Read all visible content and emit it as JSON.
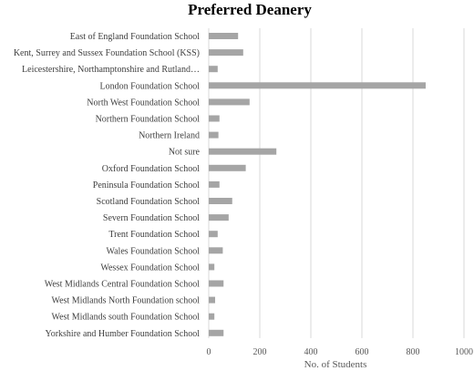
{
  "chart_data": {
    "type": "bar",
    "orientation": "horizontal",
    "title": "Preferred Deanery",
    "xlabel": "No. of Students",
    "ylabel": "",
    "xlim": [
      0,
      1000
    ],
    "x_ticks": [
      0,
      200,
      400,
      600,
      800,
      1000
    ],
    "grid": true,
    "bar_color": "#a5a5a5",
    "grid_color": "#d9d9d9",
    "categories": [
      "East of England Foundation School",
      "Kent, Surrey and Sussex Foundation School (KSS)",
      "Leicestershire, Northamptonshire and Rutland…",
      "London Foundation School",
      "North West Foundation School",
      "Northern Foundation School",
      "Northern Ireland",
      "Not sure",
      "Oxford Foundation School",
      "Peninsula Foundation School",
      "Scotland Foundation School",
      "Severn Foundation School",
      "Trent Foundation School",
      "Wales Foundation School",
      "Wessex Foundation School",
      "West Midlands Central Foundation School",
      "West Midlands North Foundation school",
      "West Midlands south Foundation School",
      "Yorkshire and Humber Foundation School"
    ],
    "values": [
      115,
      135,
      35,
      850,
      160,
      42,
      38,
      265,
      145,
      42,
      92,
      78,
      35,
      55,
      22,
      58,
      25,
      22,
      58
    ]
  }
}
